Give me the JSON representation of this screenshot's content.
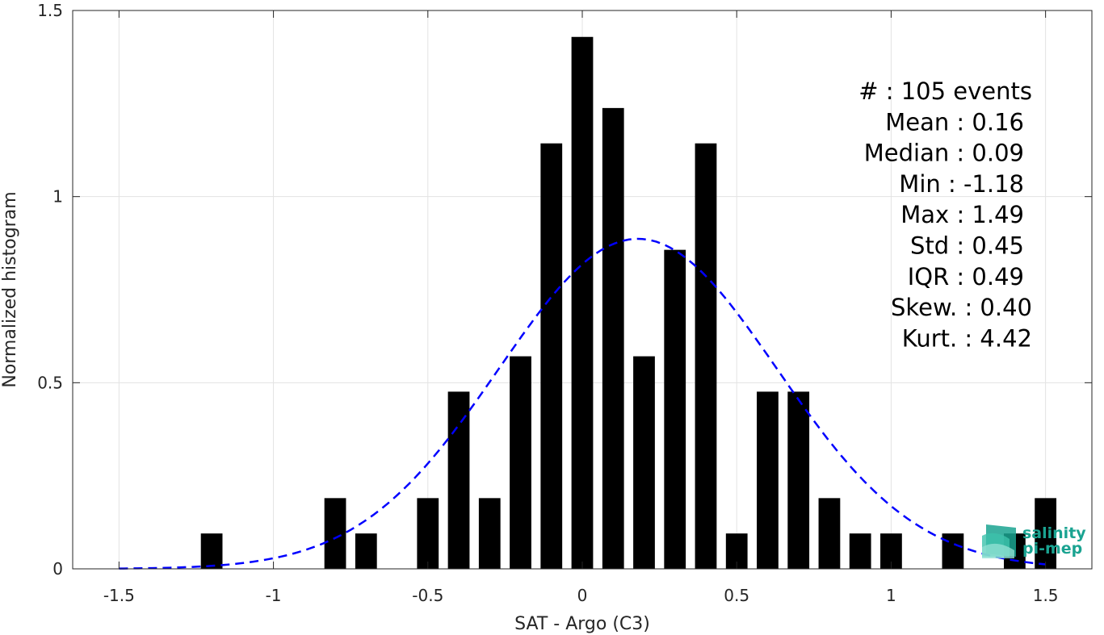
{
  "chart_data": {
    "type": "bar",
    "xlabel": "SAT - Argo (C3)",
    "ylabel": "Normalized histogram",
    "xlim": [
      -1.65,
      1.65
    ],
    "ylim": [
      0,
      1.5
    ],
    "grid": true,
    "x_ticks": [
      "-1.5",
      "-1",
      "-0.5",
      "0",
      "0.5",
      "1",
      "1.5"
    ],
    "y_ticks": [
      "0",
      "0.5",
      "1",
      "1.5"
    ],
    "bins": [
      {
        "x": -1.2,
        "y": 0.095
      },
      {
        "x": -0.8,
        "y": 0.19
      },
      {
        "x": -0.7,
        "y": 0.095
      },
      {
        "x": -0.5,
        "y": 0.19
      },
      {
        "x": -0.4,
        "y": 0.476
      },
      {
        "x": -0.3,
        "y": 0.19
      },
      {
        "x": -0.2,
        "y": 0.571
      },
      {
        "x": -0.1,
        "y": 1.143
      },
      {
        "x": 0.0,
        "y": 1.429
      },
      {
        "x": 0.1,
        "y": 1.238
      },
      {
        "x": 0.2,
        "y": 0.571
      },
      {
        "x": 0.3,
        "y": 0.857
      },
      {
        "x": 0.4,
        "y": 1.143
      },
      {
        "x": 0.5,
        "y": 0.095
      },
      {
        "x": 0.6,
        "y": 0.476
      },
      {
        "x": 0.7,
        "y": 0.476
      },
      {
        "x": 0.8,
        "y": 0.19
      },
      {
        "x": 0.9,
        "y": 0.095
      },
      {
        "x": 1.0,
        "y": 0.095
      },
      {
        "x": 1.2,
        "y": 0.095
      },
      {
        "x": 1.4,
        "y": 0.095
      },
      {
        "x": 1.5,
        "y": 0.19
      }
    ],
    "bar_width": 0.07,
    "bar_color": "#000000",
    "fit": {
      "type": "gaussian",
      "mean": 0.18,
      "std": 0.45,
      "x_range": [
        -1.5,
        1.5
      ],
      "color": "#0000ff",
      "style": "dashed"
    },
    "stats": [
      {
        "label": "#  : 105 events",
        "align": "end",
        "col": 1
      },
      {
        "label": "Mean : 0.16",
        "align": "end",
        "col": 0
      },
      {
        "label": "Median : 0.09",
        "align": "end",
        "col": 0
      },
      {
        "label": "Min : -1.18",
        "align": "end",
        "col": 0
      },
      {
        "label": "Max : 1.49",
        "align": "end",
        "col": 0
      },
      {
        "label": "Std : 0.45",
        "align": "end",
        "col": 0
      },
      {
        "label": "IQR : 0.49",
        "align": "end",
        "col": 0
      },
      {
        "label": "Skew. : 0.40",
        "align": "end",
        "col": 1
      },
      {
        "label": "Kurt. : 4.42",
        "align": "end",
        "col": 1
      }
    ]
  },
  "logo": {
    "line1": "salinity",
    "line2": "pi-mep",
    "color": "#1aa391"
  }
}
